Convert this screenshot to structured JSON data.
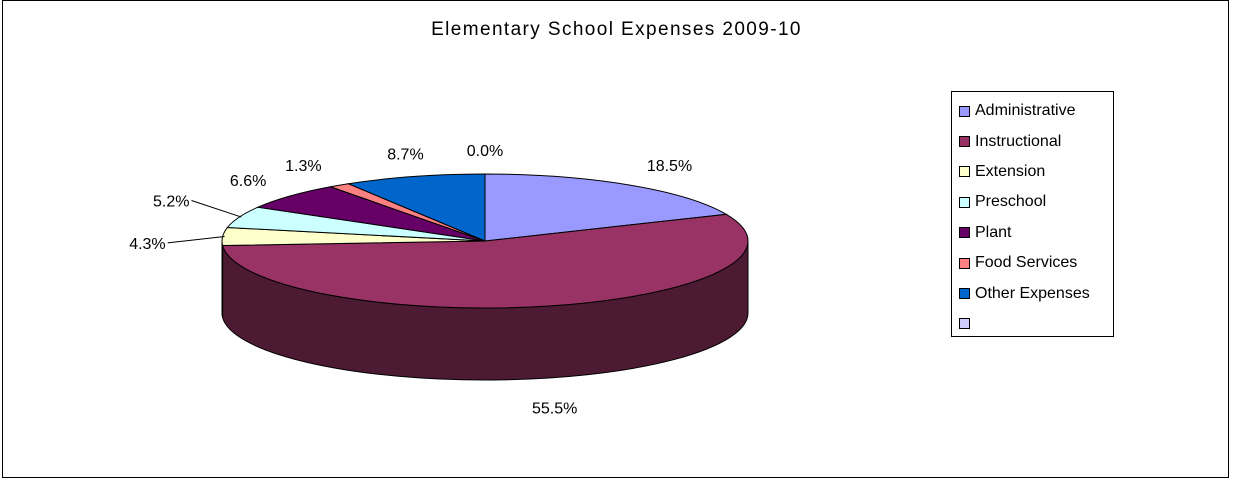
{
  "chart_data": {
    "type": "pie",
    "title": "Elementary School Expenses 2009-10",
    "slices": [
      {
        "label": "Administrative",
        "value": 18.5,
        "display": "18.5%",
        "color": "#9999ff"
      },
      {
        "label": "Instructional",
        "value": 55.5,
        "display": "55.5%",
        "color": "#993366"
      },
      {
        "label": "Extension",
        "value": 4.3,
        "display": "4.3%",
        "color": "#ffffcc"
      },
      {
        "label": "Preschool",
        "value": 5.2,
        "display": "5.2%",
        "color": "#ccffff"
      },
      {
        "label": "Plant",
        "value": 6.6,
        "display": "6.6%",
        "color": "#660066"
      },
      {
        "label": "Food Services",
        "value": 1.3,
        "display": "1.3%",
        "color": "#ff8080"
      },
      {
        "label": "Other Expenses",
        "value": 8.7,
        "display": "8.7%",
        "color": "#0066cc"
      },
      {
        "label": "",
        "value": 0.0,
        "display": "0.0%",
        "color": "#ccccff"
      }
    ],
    "legend_position": "right",
    "three_d": true
  }
}
